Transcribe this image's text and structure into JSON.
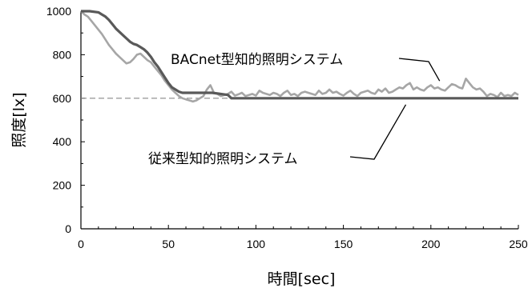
{
  "chart_data": {
    "type": "line",
    "title": "",
    "xlabel": "時間[sec]",
    "ylabel": "照度[lx]",
    "xlim": [
      0,
      250
    ],
    "ylim": [
      0,
      1000
    ],
    "xticks": [
      0,
      50,
      100,
      150,
      200,
      250
    ],
    "yticks": [
      0,
      200,
      400,
      600,
      800,
      1000
    ],
    "grid": false,
    "legend": "none",
    "target_line": {
      "y": 600,
      "style": "dashed",
      "color": "#888888"
    },
    "series": [
      {
        "name": "BACnet型知的照明システム",
        "color": "#a6a6a6",
        "x": [
          0,
          2,
          4,
          6,
          8,
          10,
          12,
          14,
          16,
          18,
          20,
          22,
          24,
          26,
          28,
          30,
          32,
          34,
          36,
          38,
          40,
          42,
          44,
          46,
          48,
          50,
          52,
          54,
          56,
          58,
          60,
          62,
          64,
          66,
          68,
          70,
          72,
          74,
          76,
          78,
          80,
          82,
          84,
          86,
          88,
          90,
          92,
          94,
          96,
          98,
          100,
          102,
          104,
          106,
          108,
          110,
          112,
          114,
          116,
          118,
          120,
          122,
          124,
          126,
          128,
          130,
          132,
          134,
          136,
          138,
          140,
          142,
          144,
          146,
          148,
          150,
          152,
          154,
          156,
          158,
          160,
          162,
          164,
          166,
          168,
          170,
          172,
          174,
          176,
          178,
          180,
          182,
          184,
          186,
          188,
          190,
          192,
          194,
          196,
          198,
          200,
          202,
          204,
          206,
          208,
          210,
          212,
          214,
          216,
          218,
          220,
          222,
          224,
          226,
          228,
          230,
          232,
          234,
          236,
          238,
          240,
          242,
          244,
          246,
          248,
          250
        ],
        "y": [
          1000,
          985,
          975,
          955,
          935,
          915,
          895,
          870,
          845,
          825,
          805,
          790,
          775,
          760,
          765,
          780,
          800,
          805,
          790,
          775,
          765,
          745,
          725,
          705,
          680,
          660,
          640,
          625,
          610,
          600,
          595,
          590,
          585,
          590,
          600,
          610,
          640,
          660,
          625,
          620,
          610,
          615,
          620,
          630,
          612,
          618,
          625,
          610,
          615,
          620,
          612,
          635,
          625,
          620,
          615,
          625,
          620,
          610,
          625,
          635,
          615,
          620,
          610,
          625,
          630,
          625,
          620,
          615,
          635,
          620,
          625,
          640,
          625,
          630,
          620,
          612,
          625,
          635,
          620,
          610,
          625,
          630,
          635,
          625,
          620,
          640,
          630,
          645,
          625,
          630,
          640,
          650,
          645,
          660,
          670,
          640,
          650,
          640,
          635,
          650,
          660,
          645,
          650,
          640,
          635,
          650,
          665,
          660,
          650,
          645,
          690,
          670,
          650,
          640,
          645,
          630,
          610,
          620,
          615,
          605,
          625,
          610,
          615,
          610,
          625,
          615
        ]
      },
      {
        "name": "従来型知的照明システム",
        "color": "#595959",
        "x": [
          0,
          5,
          10,
          12,
          14,
          16,
          18,
          20,
          22,
          24,
          26,
          28,
          30,
          32,
          34,
          36,
          38,
          40,
          42,
          44,
          46,
          48,
          50,
          52,
          54,
          56,
          58,
          60,
          65,
          70,
          75,
          80,
          84,
          86,
          90,
          100,
          120,
          140,
          160,
          180,
          200,
          220,
          240,
          250
        ],
        "y": [
          1000,
          1000,
          995,
          985,
          975,
          960,
          940,
          920,
          905,
          890,
          875,
          860,
          850,
          845,
          835,
          825,
          810,
          790,
          765,
          745,
          720,
          695,
          670,
          650,
          640,
          630,
          625,
          625,
          625,
          625,
          625,
          620,
          615,
          600,
          600,
          600,
          600,
          600,
          600,
          600,
          600,
          600,
          600,
          600
        ]
      }
    ],
    "annotations": [
      {
        "text": "BACnet型知的照明システム",
        "target": [
          205,
          650
        ]
      },
      {
        "text": "従来型知的照明システム",
        "target": [
          182,
          600
        ]
      }
    ]
  }
}
